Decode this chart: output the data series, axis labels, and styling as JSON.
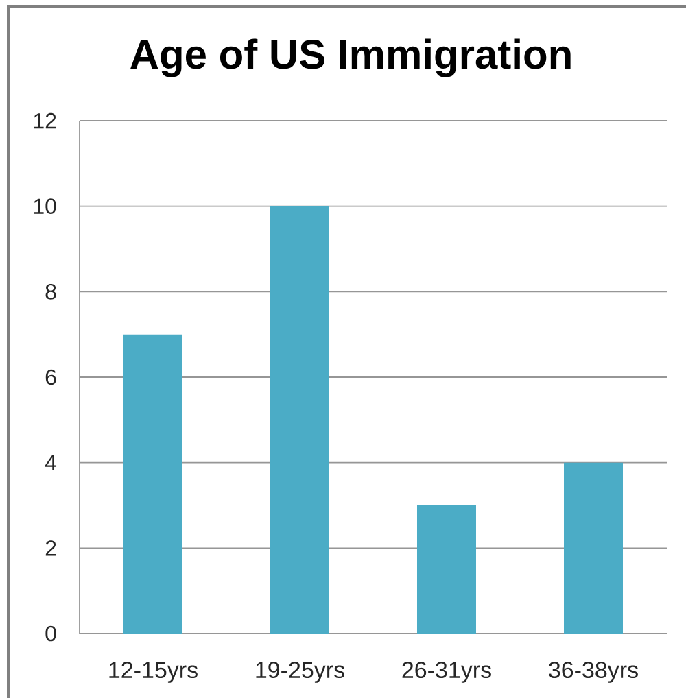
{
  "chart_data": {
    "type": "bar",
    "title": "Age of US Immigration",
    "categories": [
      "12-15yrs",
      "19-25yrs",
      "26-31yrs",
      "36-38yrs"
    ],
    "values": [
      7,
      10,
      3,
      4
    ],
    "color": "#4bacc6",
    "ylim": [
      0,
      12
    ],
    "yticks": [
      0,
      2,
      4,
      6,
      8,
      10,
      12
    ],
    "grid": "y"
  }
}
